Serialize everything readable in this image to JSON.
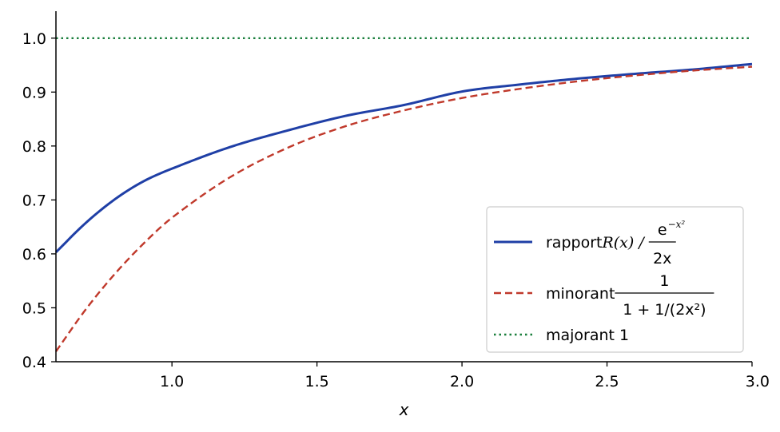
{
  "chart_data": {
    "type": "line",
    "xlabel": "x",
    "ylabel": "",
    "title": "",
    "xlim": [
      0.6,
      3.0
    ],
    "ylim": [
      0.4,
      1.05
    ],
    "xticks": [
      1.0,
      1.5,
      2.0,
      2.5,
      3.0
    ],
    "xtick_labels": [
      "1.0",
      "1.5",
      "2.0",
      "2.5",
      "3.0"
    ],
    "yticks": [
      0.4,
      0.5,
      0.6,
      0.7,
      0.8,
      0.9,
      1.0
    ],
    "ytick_labels": [
      "0.4",
      "0.5",
      "0.6",
      "0.7",
      "0.8",
      "0.9",
      "1.0"
    ],
    "grid": false,
    "legend_position": "lower-right",
    "x": [
      0.6,
      0.7,
      0.8,
      0.9,
      1.0,
      1.2,
      1.4,
      1.6,
      1.8,
      2.0,
      2.2,
      2.4,
      2.6,
      2.8,
      3.0
    ],
    "series": [
      {
        "name": "rapport R(x) / e^{-x²}/(2x)",
        "legend": {
          "prefix": "rapport ",
          "math": "R(x) /",
          "num": "e",
          "num_sup": "−x²",
          "den": "2x"
        },
        "values": [
          0.603,
          0.656,
          0.7,
          0.734,
          0.758,
          0.798,
          0.829,
          0.856,
          0.876,
          0.901,
          0.914,
          0.925,
          0.934,
          0.942,
          0.952
        ],
        "color": "#1f3fa6",
        "style": "solid"
      },
      {
        "name": "minorant 1/(1+1/(2x²))",
        "legend": {
          "prefix": "minorant ",
          "num": "1",
          "den": "1 + 1/(2x²)"
        },
        "values": [
          0.419,
          0.495,
          0.561,
          0.618,
          0.667,
          0.742,
          0.797,
          0.837,
          0.866,
          0.889,
          0.906,
          0.92,
          0.931,
          0.94,
          0.947
        ],
        "color": "#c0392b",
        "style": "dashed"
      },
      {
        "name": "majorant 1",
        "legend": {
          "prefix": "majorant 1"
        },
        "values": [
          1,
          1,
          1,
          1,
          1,
          1,
          1,
          1,
          1,
          1,
          1,
          1,
          1,
          1,
          1
        ],
        "color": "#1a7f3c",
        "style": "dotted"
      }
    ]
  }
}
